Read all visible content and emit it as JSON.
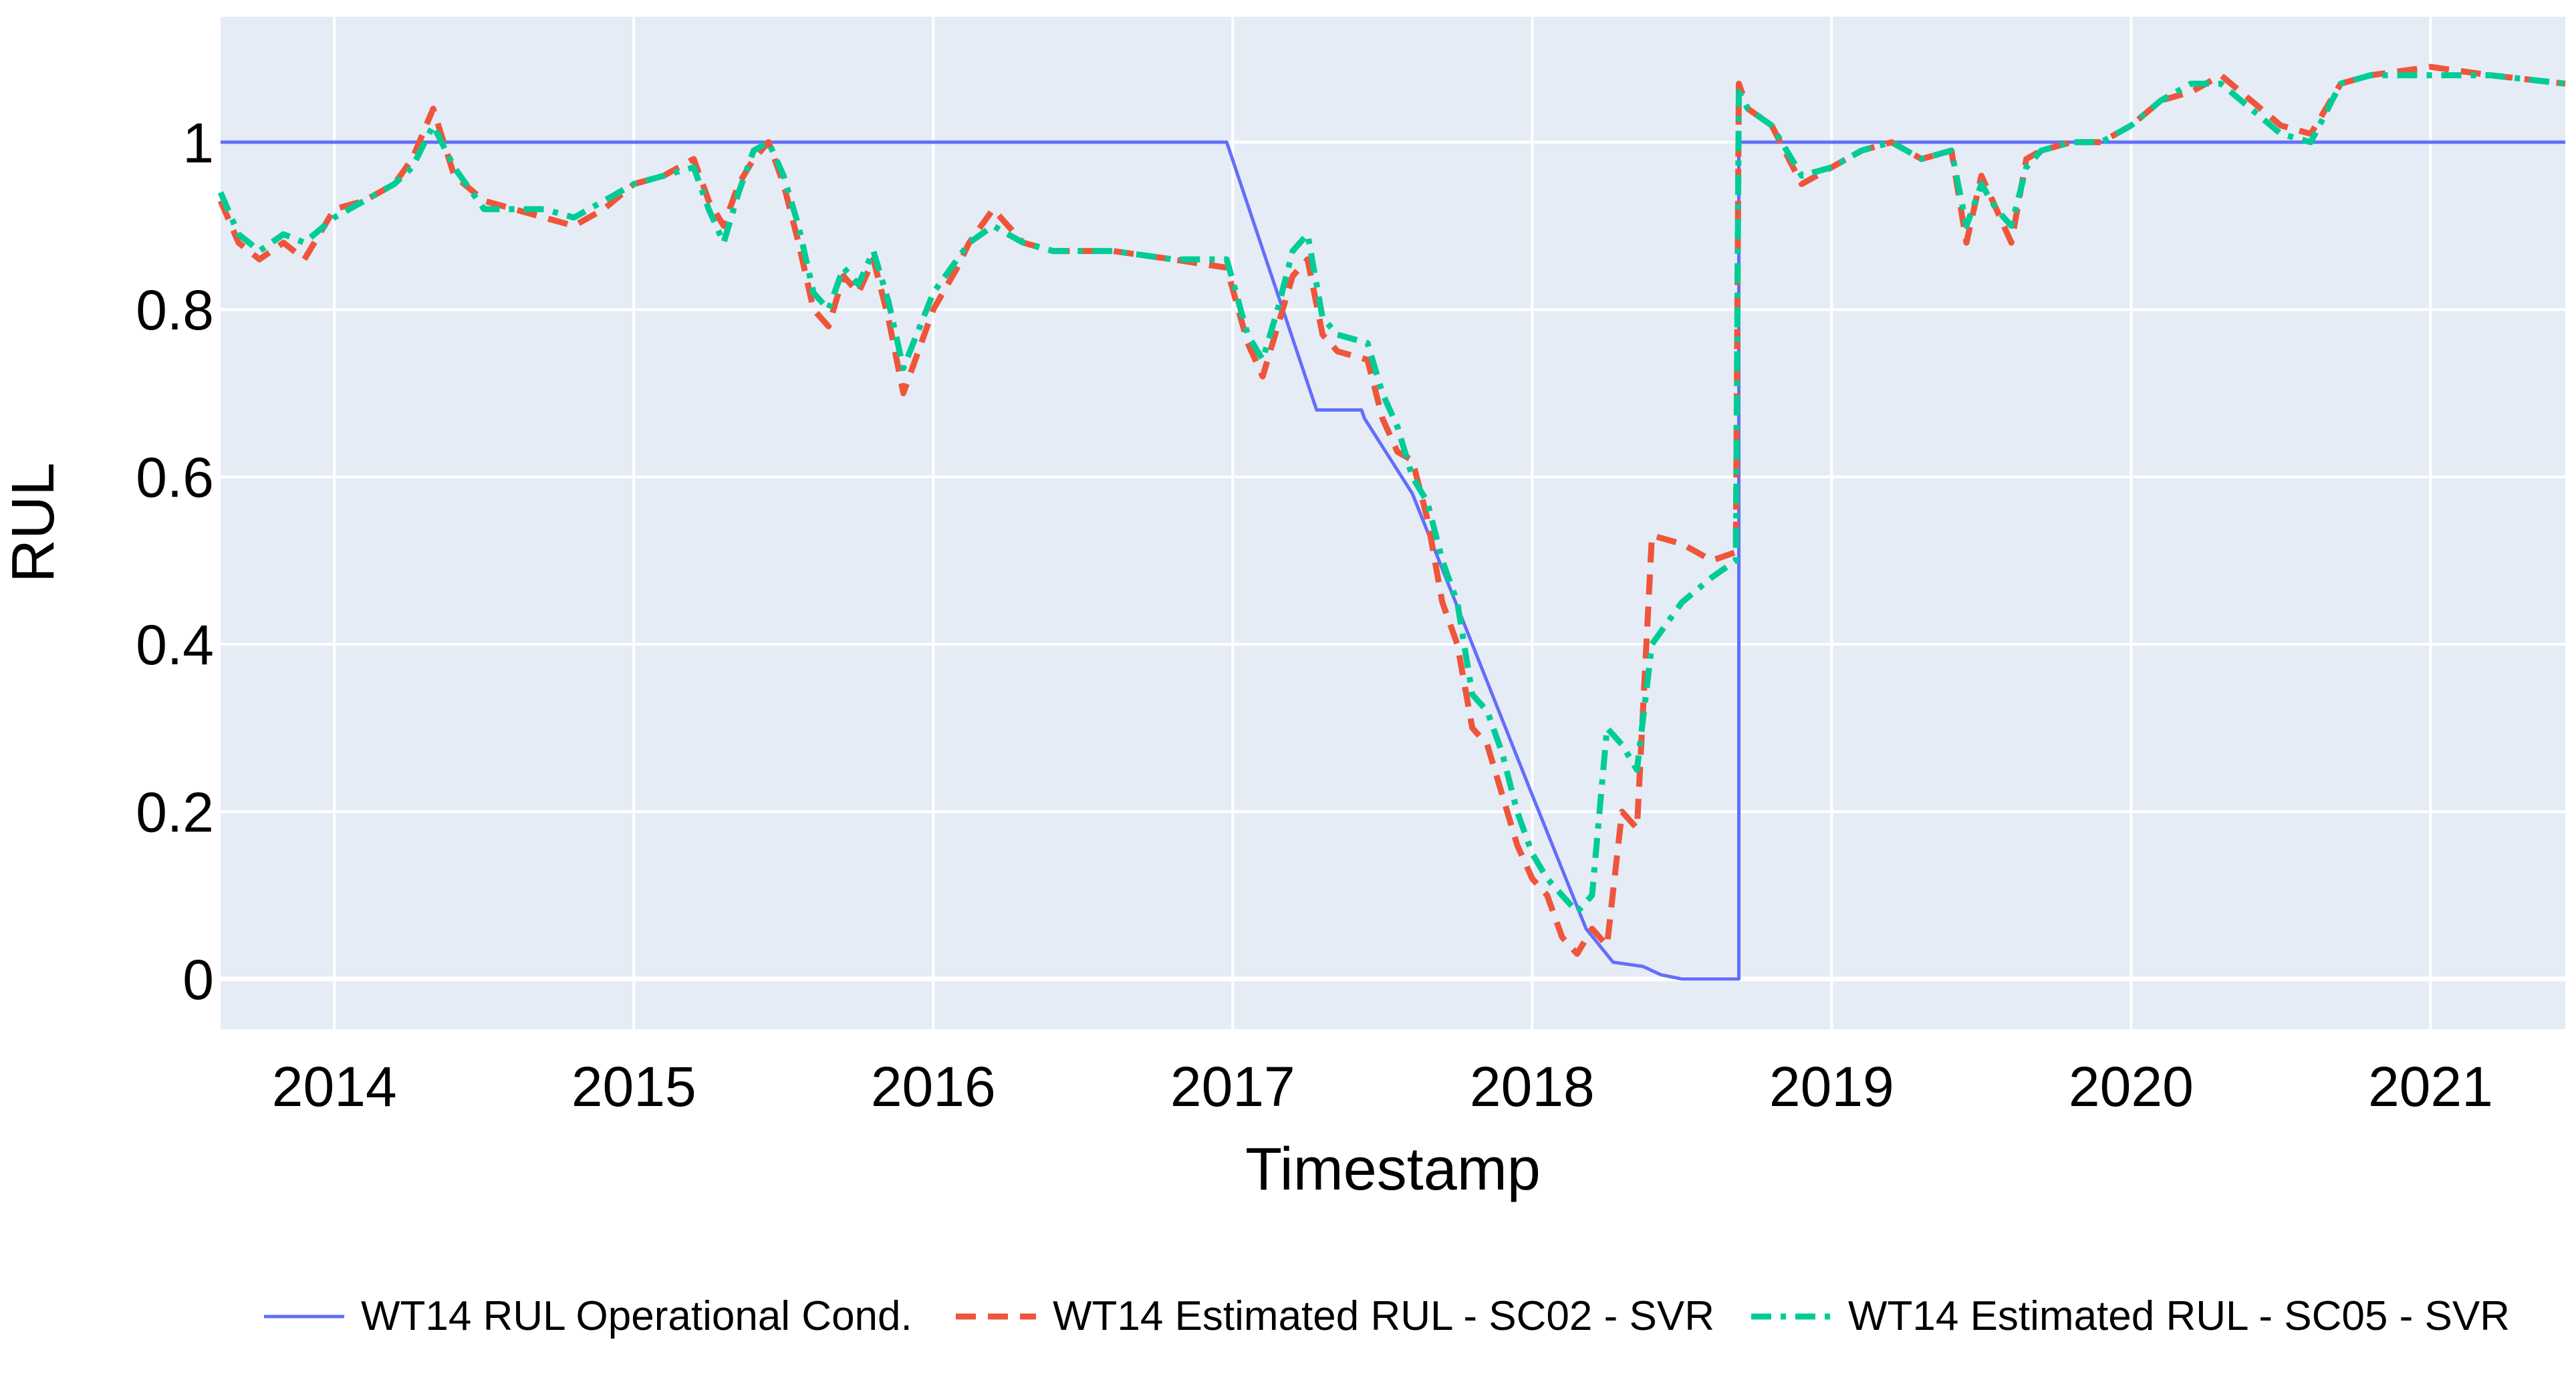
{
  "chart_data": {
    "type": "line",
    "title": "",
    "xlabel": "Timestamp",
    "ylabel": "RUL",
    "xlim": [
      2013.62,
      2021.45
    ],
    "ylim": [
      -0.06,
      1.15
    ],
    "grid": true,
    "legend_position": "bottom",
    "x_ticks": [
      {
        "value": 2014,
        "label": "2014"
      },
      {
        "value": 2015,
        "label": "2015"
      },
      {
        "value": 2016,
        "label": "2016"
      },
      {
        "value": 2017,
        "label": "2017"
      },
      {
        "value": 2018,
        "label": "2018"
      },
      {
        "value": 2019,
        "label": "2019"
      },
      {
        "value": 2020,
        "label": "2020"
      },
      {
        "value": 2021,
        "label": "2021"
      }
    ],
    "y_ticks": [
      {
        "value": 0,
        "label": "0"
      },
      {
        "value": 0.2,
        "label": "0.2"
      },
      {
        "value": 0.4,
        "label": "0.4"
      },
      {
        "value": 0.6,
        "label": "0.6"
      },
      {
        "value": 0.8,
        "label": "0.8"
      },
      {
        "value": 1,
        "label": "1"
      }
    ],
    "series": [
      {
        "name": "WT14 RUL Operational Cond.",
        "color": "#636efa",
        "dash": "solid",
        "x": [
          2013.62,
          2016.98,
          2017.28,
          2017.43,
          2017.44,
          2017.6,
          2017.8,
          2018.0,
          2018.18,
          2018.27,
          2018.37,
          2018.43,
          2018.5,
          2018.69,
          2018.69,
          2018.69,
          2021.45
        ],
        "y": [
          1.0,
          1.0,
          0.68,
          0.68,
          0.67,
          0.58,
          0.4,
          0.22,
          0.06,
          0.02,
          0.015,
          0.005,
          0.0,
          0.0,
          0.5,
          1.0,
          1.0
        ]
      },
      {
        "name": "WT14 Estimated RUL - SC02 - SVR",
        "color": "#ef553b",
        "dash": "dash",
        "x": [
          2013.62,
          2013.68,
          2013.75,
          2013.83,
          2013.9,
          2014.0,
          2014.1,
          2014.2,
          2014.26,
          2014.33,
          2014.4,
          2014.5,
          2014.6,
          2014.7,
          2014.8,
          2014.9,
          2015.0,
          2015.1,
          2015.2,
          2015.25,
          2015.3,
          2015.35,
          2015.4,
          2015.45,
          2015.5,
          2015.55,
          2015.6,
          2015.65,
          2015.7,
          2015.75,
          2015.8,
          2015.85,
          2015.9,
          2016.0,
          2016.08,
          2016.12,
          2016.2,
          2016.3,
          2016.4,
          2016.6,
          2016.8,
          2016.98,
          2017.05,
          2017.1,
          2017.15,
          2017.2,
          2017.25,
          2017.3,
          2017.35,
          2017.45,
          2017.5,
          2017.55,
          2017.6,
          2017.65,
          2017.7,
          2017.75,
          2017.8,
          2017.85,
          2017.9,
          2017.95,
          2018.0,
          2018.05,
          2018.1,
          2018.15,
          2018.2,
          2018.25,
          2018.3,
          2018.35,
          2018.4,
          2018.5,
          2018.6,
          2018.68,
          2018.69,
          2018.72,
          2018.76,
          2018.8,
          2018.9,
          2019.0,
          2019.1,
          2019.2,
          2019.3,
          2019.4,
          2019.45,
          2019.5,
          2019.55,
          2019.6,
          2019.65,
          2019.7,
          2019.8,
          2019.9,
          2020.0,
          2020.1,
          2020.2,
          2020.3,
          2020.4,
          2020.5,
          2020.6,
          2020.7,
          2020.8,
          2021.0,
          2021.2,
          2021.45
        ],
        "y": [
          0.93,
          0.88,
          0.86,
          0.88,
          0.86,
          0.92,
          0.93,
          0.95,
          0.98,
          1.04,
          0.96,
          0.93,
          0.92,
          0.91,
          0.9,
          0.92,
          0.95,
          0.96,
          0.98,
          0.93,
          0.9,
          0.95,
          0.98,
          1.0,
          0.95,
          0.88,
          0.8,
          0.78,
          0.84,
          0.82,
          0.86,
          0.79,
          0.7,
          0.8,
          0.85,
          0.88,
          0.92,
          0.88,
          0.87,
          0.87,
          0.86,
          0.85,
          0.76,
          0.72,
          0.78,
          0.84,
          0.86,
          0.77,
          0.75,
          0.74,
          0.67,
          0.63,
          0.62,
          0.55,
          0.45,
          0.4,
          0.3,
          0.28,
          0.22,
          0.16,
          0.12,
          0.1,
          0.05,
          0.03,
          0.06,
          0.04,
          0.2,
          0.18,
          0.53,
          0.52,
          0.5,
          0.51,
          1.07,
          1.04,
          1.03,
          1.02,
          0.95,
          0.97,
          0.99,
          1.0,
          0.98,
          0.99,
          0.88,
          0.96,
          0.92,
          0.88,
          0.98,
          0.99,
          1.0,
          1.0,
          1.02,
          1.05,
          1.06,
          1.08,
          1.05,
          1.02,
          1.01,
          1.07,
          1.08,
          1.09,
          1.08,
          1.07
        ]
      },
      {
        "name": "WT14 Estimated RUL - SC05 - SVR",
        "color": "#00cc96",
        "dash": "dashdot",
        "x": [
          2013.62,
          2013.68,
          2013.75,
          2013.83,
          2013.9,
          2014.0,
          2014.1,
          2014.2,
          2014.26,
          2014.33,
          2014.4,
          2014.5,
          2014.6,
          2014.7,
          2014.8,
          2014.9,
          2015.0,
          2015.1,
          2015.2,
          2015.25,
          2015.3,
          2015.35,
          2015.4,
          2015.45,
          2015.5,
          2015.55,
          2015.6,
          2015.65,
          2015.7,
          2015.75,
          2015.8,
          2015.85,
          2015.9,
          2016.0,
          2016.08,
          2016.12,
          2016.2,
          2016.3,
          2016.4,
          2016.6,
          2016.8,
          2016.98,
          2017.05,
          2017.1,
          2017.15,
          2017.2,
          2017.25,
          2017.3,
          2017.35,
          2017.45,
          2017.5,
          2017.55,
          2017.6,
          2017.65,
          2017.7,
          2017.75,
          2017.8,
          2017.85,
          2017.9,
          2017.95,
          2018.0,
          2018.05,
          2018.1,
          2018.15,
          2018.2,
          2018.25,
          2018.3,
          2018.35,
          2018.4,
          2018.5,
          2018.6,
          2018.68,
          2018.69,
          2018.72,
          2018.76,
          2018.8,
          2018.9,
          2019.0,
          2019.1,
          2019.2,
          2019.3,
          2019.4,
          2019.45,
          2019.5,
          2019.55,
          2019.6,
          2019.65,
          2019.7,
          2019.8,
          2019.9,
          2020.0,
          2020.1,
          2020.2,
          2020.3,
          2020.4,
          2020.5,
          2020.6,
          2020.7,
          2020.8,
          2021.0,
          2021.2,
          2021.45
        ],
        "y": [
          0.94,
          0.89,
          0.87,
          0.89,
          0.88,
          0.91,
          0.93,
          0.95,
          0.97,
          1.02,
          0.97,
          0.92,
          0.92,
          0.92,
          0.91,
          0.93,
          0.95,
          0.96,
          0.97,
          0.92,
          0.88,
          0.94,
          0.99,
          1.0,
          0.96,
          0.9,
          0.82,
          0.8,
          0.85,
          0.83,
          0.87,
          0.81,
          0.73,
          0.82,
          0.86,
          0.88,
          0.9,
          0.88,
          0.87,
          0.87,
          0.86,
          0.86,
          0.77,
          0.74,
          0.8,
          0.87,
          0.89,
          0.79,
          0.77,
          0.76,
          0.7,
          0.66,
          0.6,
          0.57,
          0.5,
          0.45,
          0.34,
          0.32,
          0.27,
          0.2,
          0.15,
          0.12,
          0.1,
          0.08,
          0.1,
          0.3,
          0.28,
          0.25,
          0.4,
          0.45,
          0.48,
          0.5,
          1.06,
          1.04,
          1.03,
          1.02,
          0.96,
          0.97,
          0.99,
          1.0,
          0.98,
          0.99,
          0.9,
          0.95,
          0.92,
          0.9,
          0.97,
          0.99,
          1.0,
          1.0,
          1.02,
          1.05,
          1.07,
          1.07,
          1.04,
          1.01,
          1.0,
          1.07,
          1.08,
          1.08,
          1.08,
          1.07
        ]
      }
    ]
  }
}
